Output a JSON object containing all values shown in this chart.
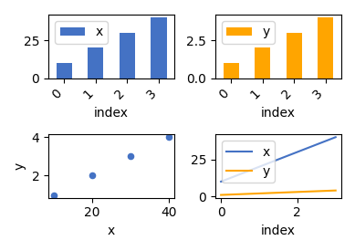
{
  "x_values": [
    10,
    20,
    30,
    40
  ],
  "y_values": [
    1,
    2,
    3,
    4
  ],
  "index": [
    0,
    1,
    2,
    3
  ],
  "bar_color_x": "#4472c4",
  "bar_color_y": "#ffa500",
  "line_color_x": "#4472c4",
  "line_color_y": "#ffa500",
  "scatter_color": "#4472c4",
  "figsize": [
    3.89,
    2.75
  ],
  "dpi": 100
}
